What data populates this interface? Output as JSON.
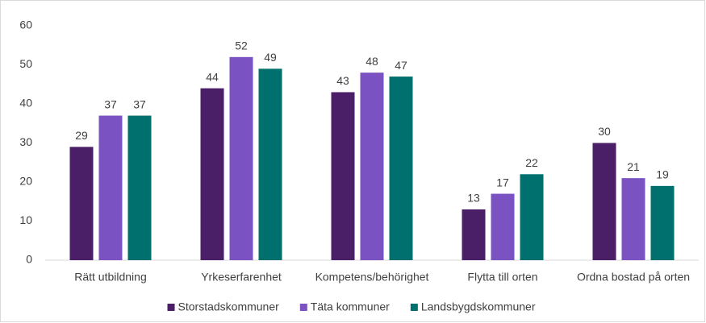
{
  "chart_data": {
    "type": "bar",
    "categories": [
      "Rätt utbildning",
      "Yrkeserfarenhet",
      "Kompetens/behörighet",
      "Flytta till orten",
      "Ordna bostad på orten"
    ],
    "series": [
      {
        "name": "Storstadskommuner",
        "color": "#4b1f68",
        "values": [
          29,
          44,
          43,
          13,
          30
        ]
      },
      {
        "name": "Täta kommuner",
        "color": "#7b52c1",
        "values": [
          37,
          52,
          48,
          17,
          21
        ]
      },
      {
        "name": "Landsbygdskommuner",
        "color": "#00706e",
        "values": [
          37,
          49,
          47,
          22,
          19
        ]
      }
    ],
    "ylim": [
      0,
      60
    ],
    "yticks": [
      0,
      10,
      20,
      30,
      40,
      50,
      60
    ],
    "grid": false,
    "legend": "bottom"
  }
}
